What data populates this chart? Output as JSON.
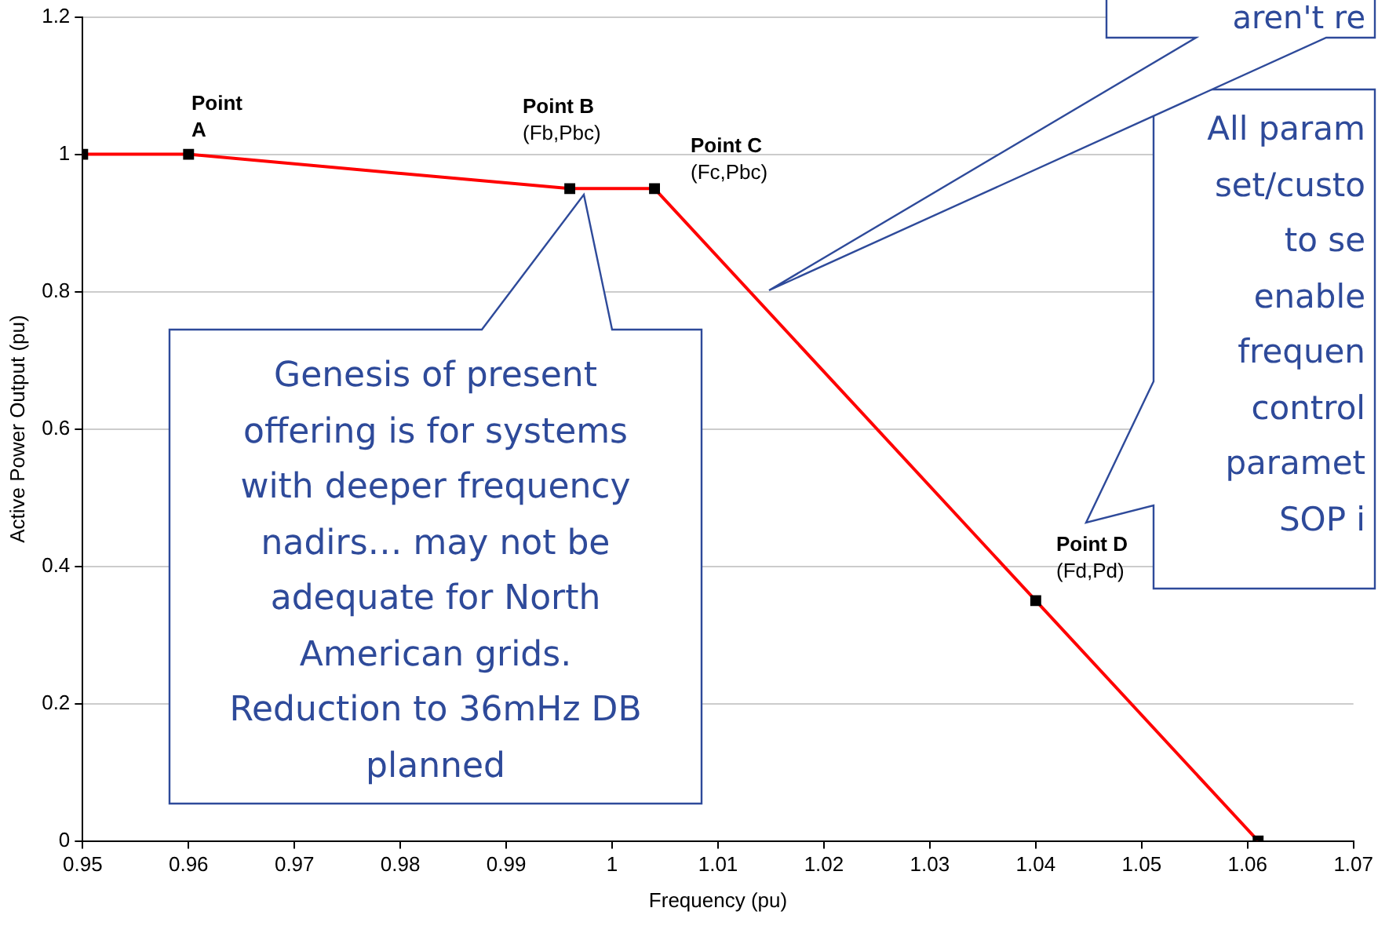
{
  "chart_data": {
    "type": "line",
    "xlabel": "Frequency (pu)",
    "ylabel": "Active Power Output (pu)",
    "x": [
      0.95,
      0.96,
      0.996,
      1.004,
      1.04,
      1.061
    ],
    "series": [
      {
        "color": "#ff0000",
        "values": [
          1,
          1,
          0.95,
          0.95,
          0.35,
          0
        ]
      }
    ],
    "xlim": [
      0.95,
      1.07
    ],
    "xticks": [
      0.95,
      0.96,
      0.97,
      0.98,
      0.99,
      1,
      1.01,
      1.02,
      1.03,
      1.04,
      1.05,
      1.06,
      1.07
    ],
    "ylim": [
      0,
      1.2
    ],
    "yticks": [
      0,
      0.2,
      0.4,
      0.6,
      0.8,
      1,
      1.2
    ],
    "grid": "y",
    "legend": false,
    "marker": "square",
    "line_style": "solid",
    "annotations": [
      "Point\nA",
      "Point B\n(Fb,Pbc)",
      "Point C\n(Fc,Pbc)",
      "Point D\n(Fd,Pd)",
      "Genesis of present\noffering is for systems\nwith deeper frequency\nnadirs… may not be\nadequate for North\nAmerican grids.\nReduction to 36mHz DB\nplanned",
      "All param\nset/custo\nto se\nenable\nfrequen\ncontrol\nparamet\nSOP i",
      "aren't re"
    ]
  }
}
